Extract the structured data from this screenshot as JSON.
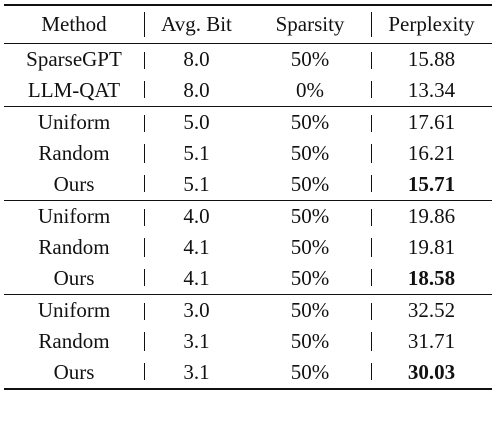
{
  "headers": [
    "Method",
    "Avg. Bit",
    "Sparsity",
    "Perplexity"
  ],
  "groups": [
    {
      "rows": [
        {
          "method": "SparseGPT",
          "bit": "8.0",
          "sparsity": "50%",
          "perplexity": "15.88",
          "best": false
        },
        {
          "method": "LLM-QAT",
          "bit": "8.0",
          "sparsity": "0%",
          "perplexity": "13.34",
          "best": false
        }
      ]
    },
    {
      "rows": [
        {
          "method": "Uniform",
          "bit": "5.0",
          "sparsity": "50%",
          "perplexity": "17.61",
          "best": false
        },
        {
          "method": "Random",
          "bit": "5.1",
          "sparsity": "50%",
          "perplexity": "16.21",
          "best": false
        },
        {
          "method": "Ours",
          "bit": "5.1",
          "sparsity": "50%",
          "perplexity": "15.71",
          "best": true
        }
      ]
    },
    {
      "rows": [
        {
          "method": "Uniform",
          "bit": "4.0",
          "sparsity": "50%",
          "perplexity": "19.86",
          "best": false
        },
        {
          "method": "Random",
          "bit": "4.1",
          "sparsity": "50%",
          "perplexity": "19.81",
          "best": false
        },
        {
          "method": "Ours",
          "bit": "4.1",
          "sparsity": "50%",
          "perplexity": "18.58",
          "best": true
        }
      ]
    },
    {
      "rows": [
        {
          "method": "Uniform",
          "bit": "3.0",
          "sparsity": "50%",
          "perplexity": "32.52",
          "best": false
        },
        {
          "method": "Random",
          "bit": "3.1",
          "sparsity": "50%",
          "perplexity": "31.71",
          "best": false
        },
        {
          "method": "Ours",
          "bit": "3.1",
          "sparsity": "50%",
          "perplexity": "30.03",
          "best": true
        }
      ]
    }
  ]
}
